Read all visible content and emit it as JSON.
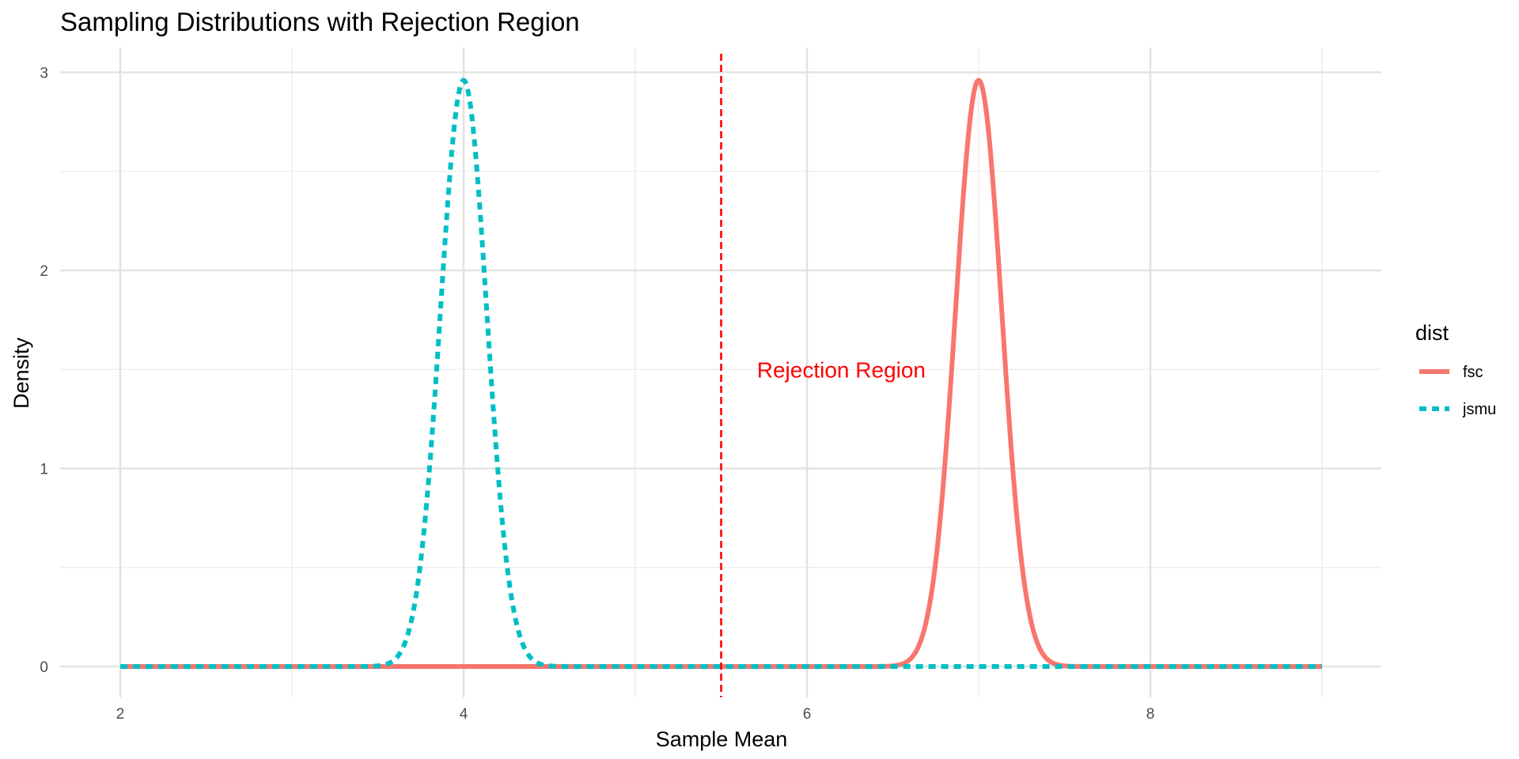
{
  "chart_data": {
    "type": "line",
    "title": "Sampling Distributions with Rejection Region",
    "xlabel": "Sample Mean",
    "ylabel": "Density",
    "xlim": [
      2,
      9
    ],
    "ylim": [
      0,
      3
    ],
    "x_ticks": [
      2,
      4,
      6,
      8
    ],
    "y_ticks": [
      0,
      1,
      2,
      3
    ],
    "grid": true,
    "legend": {
      "title": "dist",
      "position": "right"
    },
    "series": [
      {
        "name": "fsc",
        "color": "#F8766D",
        "linestyle": "solid",
        "distribution": "normal",
        "mean": 7,
        "sd": 0.1348,
        "peak_density": 2.96
      },
      {
        "name": "jsmu",
        "color": "#00BFC4",
        "linestyle": "dashed",
        "distribution": "normal",
        "mean": 4,
        "sd": 0.1348,
        "peak_density": 2.96
      }
    ],
    "reference_line": {
      "x": 5.5,
      "color": "#FF0000",
      "linestyle": "dashed"
    },
    "annotations": [
      {
        "text": "Rejection Region",
        "x": 6.2,
        "y": 1.5,
        "color": "#FF0000"
      }
    ]
  }
}
